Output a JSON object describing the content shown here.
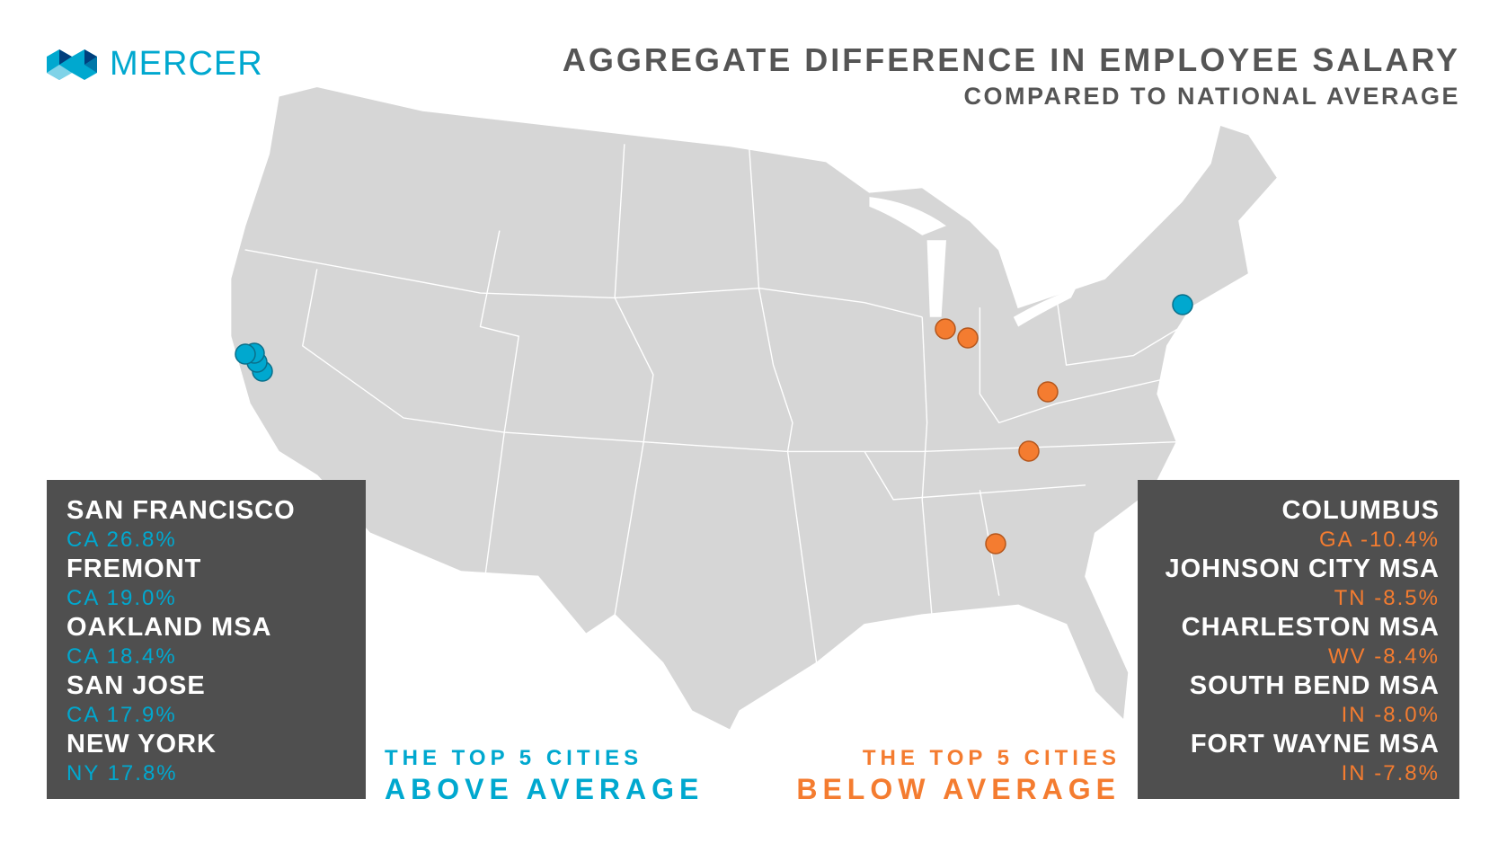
{
  "logo": {
    "text": "MERCER"
  },
  "header": {
    "title": "AGGREGATE DIFFERENCE IN EMPLOYEE SALARY",
    "subtitle": "COMPARED TO NATIONAL AVERAGE"
  },
  "colors": {
    "above": "#00a8cf",
    "below": "#f47c30",
    "panel": "#4f4f4f",
    "land": "#d6d6d6"
  },
  "above": {
    "caption_top": "THE TOP 5 CITIES",
    "caption_bottom": "ABOVE AVERAGE",
    "cities": [
      {
        "name": "SAN FRANCISCO",
        "value": "CA 26.8%"
      },
      {
        "name": "FREMONT",
        "value": "CA 19.0%"
      },
      {
        "name": "OAKLAND MSA",
        "value": "CA 18.4%"
      },
      {
        "name": "SAN JOSE",
        "value": "CA 17.9%"
      },
      {
        "name": "NEW YORK",
        "value": "NY 17.8%"
      }
    ]
  },
  "below": {
    "caption_top": "THE TOP 5 CITIES",
    "caption_bottom": "BELOW AVERAGE",
    "cities": [
      {
        "name": "COLUMBUS",
        "value": "GA -10.4%"
      },
      {
        "name": "JOHNSON CITY MSA",
        "value": "TN -8.5%"
      },
      {
        "name": "CHARLESTON MSA",
        "value": "WV -8.4%"
      },
      {
        "name": "SOUTH BEND MSA",
        "value": "IN -8.0%"
      },
      {
        "name": "FORT WAYNE MSA",
        "value": "IN -7.8%"
      }
    ]
  }
}
